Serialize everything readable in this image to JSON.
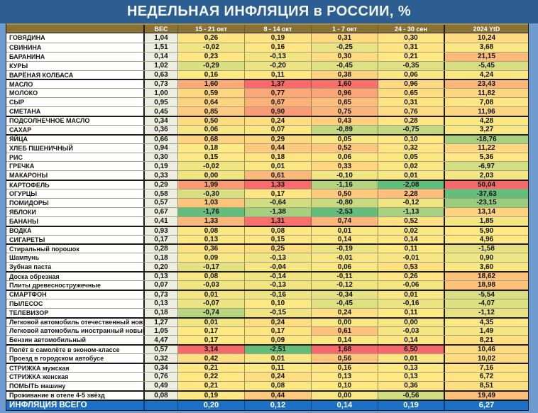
{
  "title": "НЕДЕЛЬНАЯ ИНФЛЯЦИЯ в РОССИИ, %",
  "colors": {
    "page_bg": "#6E9BD0",
    "title_bg": "#2D5E91",
    "header_bg": "#8A7134",
    "ves_bg": "#ECEEE2",
    "total_bg": "#1B6FC4",
    "scale_low": "#63BE7B",
    "scale_mid": "#FFE983",
    "scale_high": "#F8696B"
  },
  "chart_data": {
    "type": "heatmap",
    "unit": "%",
    "legend_position": "none",
    "color_scale_note": "per-column 3-color scale green-yellow-red, midpoint = column median",
    "columns": [
      "ВЕС",
      "15 - 21 окт",
      "8 - 14 окт",
      "1 - 7 окт",
      "24 - 30 сен",
      "2024 YtD"
    ],
    "rows": [
      {
        "name": "ГОВЯДИНА",
        "group_start": false,
        "values": [
          1.04,
          0.26,
          0.19,
          0.31,
          0.3,
          10.24
        ]
      },
      {
        "name": "СВИНИНА",
        "group_start": false,
        "values": [
          1.51,
          -0.02,
          0.16,
          -0.25,
          0.31,
          3.68
        ]
      },
      {
        "name": "БАРАНИНА",
        "group_start": false,
        "values": [
          0.14,
          0.23,
          -0.13,
          0.3,
          0.21,
          21.15
        ]
      },
      {
        "name": "КУРЫ",
        "group_start": false,
        "values": [
          1.02,
          -0.29,
          -0.2,
          -0.45,
          -0.35,
          -5.45
        ]
      },
      {
        "name": "ВАРЁНАЯ КОЛБАСА",
        "group_start": false,
        "values": [
          0.63,
          0.16,
          0.11,
          0.38,
          0.06,
          4.24
        ]
      },
      {
        "name": "МАСЛО",
        "group_start": true,
        "values": [
          0.73,
          1.6,
          1.37,
          1.6,
          0.96,
          23.43
        ]
      },
      {
        "name": "МОЛОКО",
        "group_start": false,
        "values": [
          1.0,
          0.59,
          0.77,
          0.96,
          0.65,
          11.82
        ]
      },
      {
        "name": "СЫР",
        "group_start": false,
        "values": [
          0.95,
          0.64,
          0.67,
          0.65,
          0.31,
          7.08
        ]
      },
      {
        "name": "СМЕТАНА",
        "group_start": false,
        "values": [
          0.45,
          0.85,
          0.9,
          0.75,
          0.76,
          11.96
        ]
      },
      {
        "name": "ПОДСОЛНЕЧНОЕ МАСЛО",
        "group_start": true,
        "values": [
          0.34,
          0.5,
          0.24,
          0.43,
          0.28,
          4.28
        ]
      },
      {
        "name": "САХАР",
        "group_start": false,
        "values": [
          0.36,
          0.06,
          0.07,
          -0.89,
          -0.75,
          3.27
        ]
      },
      {
        "name": "ЯЙЦА",
        "group_start": true,
        "values": [
          0.66,
          0.68,
          0.29,
          0.05,
          0.1,
          -18.76
        ]
      },
      {
        "name": "ХЛЕБ ПШЕНИЧНЫЙ",
        "group_start": false,
        "values": [
          0.94,
          0.18,
          0.44,
          0.52,
          0.32,
          11.22
        ]
      },
      {
        "name": "РИС",
        "group_start": false,
        "values": [
          0.3,
          0.15,
          0.18,
          0.06,
          0.05,
          5.36
        ]
      },
      {
        "name": "ГРЕЧКА",
        "group_start": false,
        "values": [
          0.19,
          -0.02,
          0.01,
          0.33,
          0.02,
          -6.97
        ]
      },
      {
        "name": "МАКАРОНЫ",
        "group_start": false,
        "values": [
          0.33,
          0.0,
          0.61,
          -0.1,
          0.01,
          2.03
        ]
      },
      {
        "name": "КАРТОФЕЛЬ",
        "group_start": true,
        "values": [
          0.29,
          1.99,
          1.33,
          -1.16,
          -2.08,
          50.04
        ]
      },
      {
        "name": "ОГУРЦЫ",
        "group_start": false,
        "values": [
          0.58,
          -0.3,
          0.17,
          0.5,
          2.28,
          -37.63
        ]
      },
      {
        "name": "ПОМИДОРЫ",
        "group_start": false,
        "values": [
          0.57,
          1.03,
          -0.64,
          -0.8,
          -0.12,
          -23.15
        ]
      },
      {
        "name": "ЯБЛОКИ",
        "group_start": false,
        "values": [
          0.67,
          -1.76,
          -1.38,
          -2.53,
          -1.13,
          13.14
        ]
      },
      {
        "name": "БАНАНЫ",
        "group_start": false,
        "values": [
          0.41,
          1.33,
          1.31,
          0.74,
          0.52,
          1.85
        ]
      },
      {
        "name": "ВОДКА",
        "group_start": true,
        "values": [
          0.93,
          0.08,
          0.08,
          0.01,
          0.02,
          5.9
        ]
      },
      {
        "name": "СИГАРЕТЫ",
        "group_start": false,
        "values": [
          0.17,
          0.13,
          0.15,
          0.14,
          0.14,
          4.96
        ]
      },
      {
        "name": "Стиральный порошок",
        "group_start": true,
        "values": [
          0.28,
          0.36,
          0.25,
          -0.19,
          0.11,
          -1.58
        ]
      },
      {
        "name": "Шампунь",
        "group_start": false,
        "values": [
          0.18,
          0.09,
          -0.13,
          -0.01,
          -0.01,
          0.9
        ]
      },
      {
        "name": "Зубная паста",
        "group_start": false,
        "values": [
          0.2,
          -0.17,
          -0.04,
          0.06,
          0.53,
          3.6
        ]
      },
      {
        "name": "Доска обрезная",
        "group_start": true,
        "values": [
          0.13,
          0.08,
          -0.14,
          -0.11,
          0.26,
          18.62
        ]
      },
      {
        "name": "Плиты древесностружечные",
        "group_start": false,
        "values": [
          0.07,
          -0.03,
          -0.13,
          -0.12,
          -0.06,
          18.98
        ]
      },
      {
        "name": "СМАРТФОН",
        "group_start": true,
        "values": [
          0.73,
          0.01,
          -0.16,
          -0.34,
          0.01,
          -5.54
        ]
      },
      {
        "name": "ПЫЛЕСОС",
        "group_start": false,
        "values": [
          0.13,
          -0.07,
          0.1,
          -0.45,
          -0.16,
          -4.07
        ]
      },
      {
        "name": "ТЕЛЕВИЗОР",
        "group_start": false,
        "values": [
          0.18,
          -0.74,
          -0.15,
          0.24,
          0.11,
          -1.12
        ]
      },
      {
        "name": "Легковой автомобиль отечественный новый",
        "group_start": true,
        "values": [
          1.27,
          0.01,
          0.24,
          0.0,
          0.0,
          4.35
        ]
      },
      {
        "name": "Легковой автомобиль иностранный новый",
        "group_start": false,
        "values": [
          1.05,
          0.17,
          0.17,
          0.61,
          -0.03,
          1.49
        ]
      },
      {
        "name": "Бензин автомобильный",
        "group_start": false,
        "values": [
          4.47,
          0.17,
          0.09,
          0.14,
          0.14,
          8.21
        ]
      },
      {
        "name": "Полёт в самолёте в эконом-классе",
        "group_start": true,
        "values": [
          0.57,
          3.14,
          -2.51,
          1.68,
          6.5,
          10.46
        ]
      },
      {
        "name": "Проезд в городском автобусе",
        "group_start": false,
        "values": [
          0.32,
          0.42,
          0.01,
          0.56,
          0.01,
          10.02
        ]
      },
      {
        "name": "СТРИЖКА мужская",
        "group_start": true,
        "values": [
          0.34,
          0.21,
          0.11,
          0.16,
          0.13,
          7.16
        ]
      },
      {
        "name": "СТРИЖКА женская",
        "group_start": false,
        "values": [
          0.76,
          0.22,
          0.24,
          0.13,
          0.13,
          6.72
        ]
      },
      {
        "name": "ПОМЫТЬ машину",
        "group_start": false,
        "values": [
          0.49,
          0.21,
          0.08,
          0.1,
          0.36,
          8.51
        ]
      },
      {
        "name": "Проживание в отеле 4-5 звёзд",
        "group_start": true,
        "values": [
          0.08,
          0.19,
          0.44,
          0.0,
          -0.56,
          19.49
        ]
      }
    ],
    "total": {
      "label": "ИНФЛЯЦИЯ ВСЕГО",
      "values": [
        0.2,
        0.12,
        0.14,
        0.19,
        6.27
      ]
    }
  }
}
